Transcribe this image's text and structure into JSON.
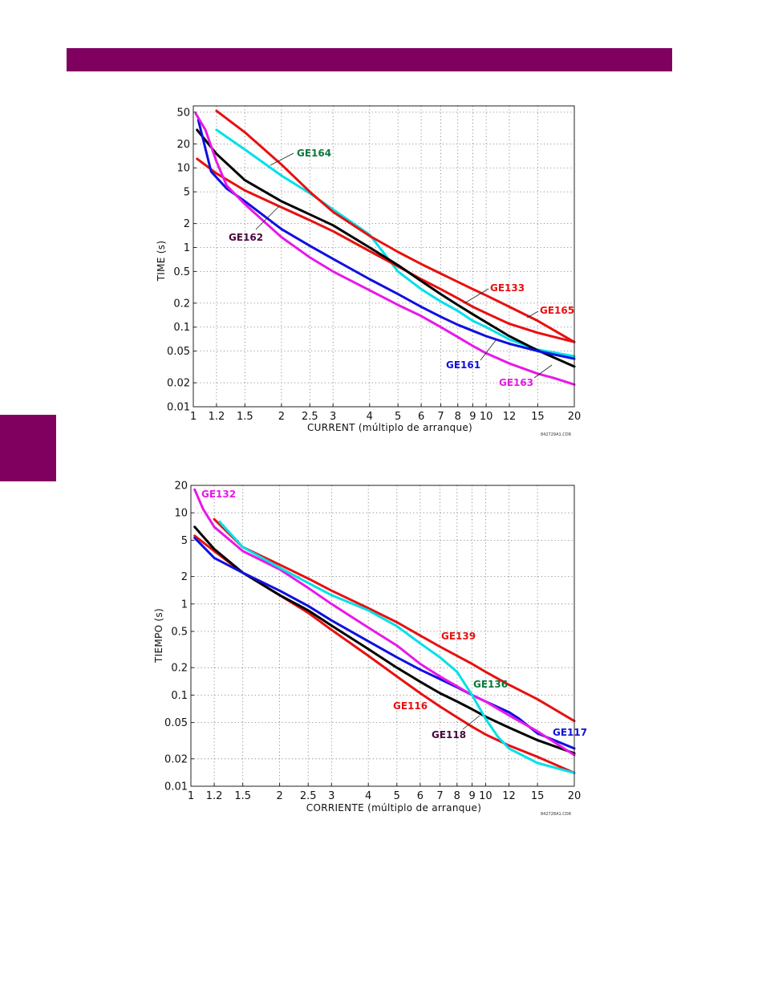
{
  "page": {
    "accent_color": "#800060"
  },
  "chart_data": [
    {
      "type": "line",
      "xscale": "log",
      "yscale": "log",
      "xlim": [
        1,
        20
      ],
      "ylim": [
        0.01,
        60
      ],
      "grid": true,
      "xlabel": "CURRENT (múltiplo de arranque)",
      "ylabel": "TIME (s)",
      "reference": "842729A1.CDR",
      "xticks": [
        {
          "v": 1,
          "label": "1"
        },
        {
          "v": 1.2,
          "label": "1.2"
        },
        {
          "v": 1.5,
          "label": "1.5"
        },
        {
          "v": 2,
          "label": "2"
        },
        {
          "v": 2.5,
          "label": "2.5"
        },
        {
          "v": 3,
          "label": "3"
        },
        {
          "v": 4,
          "label": "4"
        },
        {
          "v": 5,
          "label": "5"
        },
        {
          "v": 6,
          "label": "6"
        },
        {
          "v": 7,
          "label": "7"
        },
        {
          "v": 8,
          "label": "8"
        },
        {
          "v": 9,
          "label": "9"
        },
        {
          "v": 10,
          "label": "10"
        },
        {
          "v": 12,
          "label": "12"
        },
        {
          "v": 15,
          "label": "15"
        },
        {
          "v": 20,
          "label": "20"
        }
      ],
      "yticks": [
        {
          "v": 0.01,
          "label": "0.01"
        },
        {
          "v": 0.02,
          "label": "0.02"
        },
        {
          "v": 0.05,
          "label": "0.05"
        },
        {
          "v": 0.1,
          "label": "0.1"
        },
        {
          "v": 0.2,
          "label": "0.2"
        },
        {
          "v": 0.5,
          "label": "0.5"
        },
        {
          "v": 1,
          "label": "1"
        },
        {
          "v": 2,
          "label": "2"
        },
        {
          "v": 5,
          "label": "5"
        },
        {
          "v": 10,
          "label": "10"
        },
        {
          "v": 20,
          "label": "20"
        },
        {
          "v": 50,
          "label": "50"
        }
      ],
      "series": [
        {
          "name": "GE164",
          "color": "#00e0e8",
          "x": [
            1.2,
            1.5,
            2,
            2.5,
            3,
            4,
            5,
            6,
            7,
            8,
            9,
            10,
            12,
            15,
            20
          ],
          "y": [
            30,
            17,
            8,
            4.8,
            3,
            1.45,
            0.5,
            0.3,
            0.21,
            0.16,
            0.12,
            0.1,
            0.07,
            0.052,
            0.043
          ]
        },
        {
          "name": "GE165",
          "color": "#e81010",
          "x": [
            1.2,
            1.5,
            2,
            2.5,
            3,
            4,
            5,
            6,
            7,
            8,
            9,
            10,
            12,
            15,
            20
          ],
          "y": [
            52,
            28,
            11,
            5,
            2.8,
            1.4,
            0.88,
            0.62,
            0.47,
            0.37,
            0.3,
            0.25,
            0.18,
            0.12,
            0.065
          ]
        },
        {
          "name": "GE133",
          "color": "#e81010",
          "x": [
            1.03,
            1.2,
            1.5,
            2,
            2.5,
            3,
            4,
            5,
            6,
            7,
            8,
            9,
            10,
            12,
            15,
            20
          ],
          "y": [
            13,
            8.5,
            5.2,
            3.2,
            2.2,
            1.6,
            0.9,
            0.58,
            0.4,
            0.3,
            0.23,
            0.18,
            0.15,
            0.11,
            0.085,
            0.065
          ]
        },
        {
          "name": "GE162",
          "color": "#000000",
          "x": [
            1.03,
            1.2,
            1.5,
            2,
            2.5,
            3,
            4,
            5,
            6,
            7,
            8,
            9,
            10,
            12,
            15,
            20
          ],
          "y": [
            30,
            15,
            7,
            3.8,
            2.6,
            1.9,
            1,
            0.6,
            0.38,
            0.26,
            0.19,
            0.145,
            0.115,
            0.077,
            0.051,
            0.032
          ]
        },
        {
          "name": "GE161",
          "color": "#1010e0",
          "x": [
            1.04,
            1.15,
            1.3,
            1.5,
            2,
            2.5,
            3,
            4,
            5,
            6,
            7,
            8,
            9,
            10,
            12,
            15,
            20
          ],
          "y": [
            40,
            9,
            5.5,
            3.8,
            1.7,
            1.05,
            0.72,
            0.4,
            0.26,
            0.18,
            0.135,
            0.107,
            0.09,
            0.077,
            0.062,
            0.05,
            0.04
          ]
        },
        {
          "name": "GE163",
          "color": "#e818e8",
          "x": [
            1.02,
            1.1,
            1.2,
            1.3,
            1.5,
            2,
            2.5,
            3,
            4,
            5,
            6,
            7,
            8,
            9,
            10,
            12,
            15,
            17,
            20
          ],
          "y": [
            48,
            30,
            12,
            6,
            3.5,
            1.35,
            0.75,
            0.5,
            0.29,
            0.19,
            0.138,
            0.1,
            0.075,
            0.058,
            0.047,
            0.035,
            0.026,
            0.023,
            0.019
          ]
        }
      ],
      "labels": [
        {
          "text": "GE164",
          "color": "#0a7a3a"
        },
        {
          "text": "GE162",
          "color": "#4a0840"
        },
        {
          "text": "GE133",
          "color": "#e81010"
        },
        {
          "text": "GE165",
          "color": "#e81010"
        },
        {
          "text": "GE161",
          "color": "#1010e0"
        },
        {
          "text": "GE163",
          "color": "#e818e8"
        }
      ]
    },
    {
      "type": "line",
      "xscale": "log",
      "yscale": "log",
      "xlim": [
        1,
        20
      ],
      "ylim": [
        0.01,
        20
      ],
      "grid": true,
      "xlabel": "CORRIENTE (múltiplo de arranque)",
      "ylabel": "TIEMPO (s)",
      "reference": "842728A1.CDR",
      "xticks": [
        {
          "v": 1,
          "label": "1"
        },
        {
          "v": 1.2,
          "label": "1.2"
        },
        {
          "v": 1.5,
          "label": "1.5"
        },
        {
          "v": 2,
          "label": "2"
        },
        {
          "v": 2.5,
          "label": "2.5"
        },
        {
          "v": 3,
          "label": "3"
        },
        {
          "v": 4,
          "label": "4"
        },
        {
          "v": 5,
          "label": "5"
        },
        {
          "v": 6,
          "label": "6"
        },
        {
          "v": 7,
          "label": "7"
        },
        {
          "v": 8,
          "label": "8"
        },
        {
          "v": 9,
          "label": "9"
        },
        {
          "v": 10,
          "label": "10"
        },
        {
          "v": 12,
          "label": "12"
        },
        {
          "v": 15,
          "label": "15"
        },
        {
          "v": 20,
          "label": "20"
        }
      ],
      "yticks": [
        {
          "v": 0.01,
          "label": "0.01"
        },
        {
          "v": 0.02,
          "label": "0.02"
        },
        {
          "v": 0.05,
          "label": "0.05"
        },
        {
          "v": 0.1,
          "label": "0.1"
        },
        {
          "v": 0.2,
          "label": "0.2"
        },
        {
          "v": 0.5,
          "label": "0.5"
        },
        {
          "v": 1,
          "label": "1"
        },
        {
          "v": 2,
          "label": "2"
        },
        {
          "v": 5,
          "label": "5"
        },
        {
          "v": 10,
          "label": "10"
        },
        {
          "v": 20,
          "label": "20"
        }
      ],
      "series": [
        {
          "name": "GE139",
          "color": "#e81010",
          "x": [
            1.2,
            1.5,
            2,
            2.5,
            3,
            4,
            5,
            6,
            7,
            8,
            9,
            10,
            12,
            15,
            20
          ],
          "y": [
            8.5,
            4.2,
            2.7,
            1.9,
            1.4,
            0.9,
            0.63,
            0.45,
            0.34,
            0.27,
            0.22,
            0.18,
            0.13,
            0.09,
            0.052
          ]
        },
        {
          "name": "GE116",
          "color": "#e81010",
          "x": [
            1.03,
            1.2,
            1.5,
            2,
            2.5,
            3,
            4,
            5,
            6,
            7,
            8,
            9,
            10,
            12,
            15,
            20
          ],
          "y": [
            5.6,
            3.8,
            2.2,
            1.25,
            0.8,
            0.52,
            0.27,
            0.16,
            0.105,
            0.075,
            0.057,
            0.045,
            0.037,
            0.028,
            0.021,
            0.014
          ]
        },
        {
          "name": "GE118",
          "color": "#000000",
          "x": [
            1.03,
            1.2,
            1.5,
            2,
            2.5,
            3,
            4,
            5,
            6,
            7,
            8,
            9,
            10,
            12,
            15,
            20
          ],
          "y": [
            7,
            4,
            2.2,
            1.25,
            0.85,
            0.58,
            0.32,
            0.2,
            0.14,
            0.105,
            0.085,
            0.07,
            0.058,
            0.044,
            0.032,
            0.023
          ]
        },
        {
          "name": "GE117",
          "color": "#1010e0",
          "x": [
            1.03,
            1.2,
            1.5,
            2,
            2.5,
            3,
            4,
            5,
            6,
            7,
            8,
            9,
            10,
            12,
            13,
            15,
            20
          ],
          "y": [
            5.3,
            3.2,
            2.2,
            1.4,
            0.95,
            0.66,
            0.39,
            0.26,
            0.19,
            0.15,
            0.122,
            0.1,
            0.085,
            0.065,
            0.055,
            0.038,
            0.026
          ]
        },
        {
          "name": "GE132",
          "color": "#e818e8",
          "x": [
            1.03,
            1.1,
            1.2,
            1.5,
            2,
            2.5,
            3,
            4,
            5,
            6,
            7,
            8,
            9,
            10,
            12,
            15,
            20
          ],
          "y": [
            18,
            11,
            7,
            3.8,
            2.4,
            1.5,
            1,
            0.55,
            0.35,
            0.22,
            0.16,
            0.125,
            0.1,
            0.085,
            0.06,
            0.04,
            0.022
          ]
        },
        {
          "name": "GE136",
          "color": "#00e0e8",
          "x": [
            1.25,
            1.5,
            2,
            2.5,
            3,
            4,
            5,
            6,
            7,
            8,
            9,
            10,
            11,
            12,
            15,
            20
          ],
          "y": [
            8,
            4.2,
            2.5,
            1.7,
            1.25,
            0.85,
            0.57,
            0.37,
            0.26,
            0.18,
            0.1,
            0.055,
            0.035,
            0.026,
            0.018,
            0.014
          ]
        }
      ],
      "labels": [
        {
          "text": "GE132",
          "color": "#e818e8"
        },
        {
          "text": "GE139",
          "color": "#e81010"
        },
        {
          "text": "GE136",
          "color": "#0a7a3a"
        },
        {
          "text": "GE116",
          "color": "#e81010"
        },
        {
          "text": "GE118",
          "color": "#4a0840"
        },
        {
          "text": "GE117",
          "color": "#1010e0"
        }
      ]
    }
  ]
}
